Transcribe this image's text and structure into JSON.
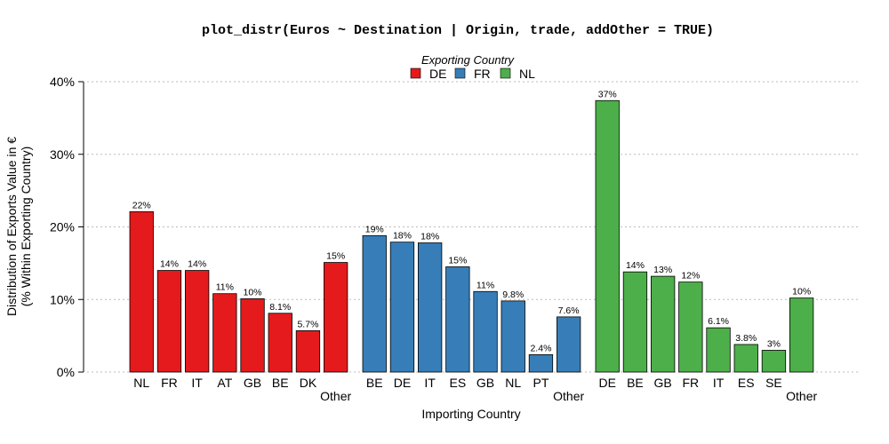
{
  "chart_data": {
    "type": "bar",
    "title": "plot_distr(Euros ~ Destination | Origin, trade, addOther = TRUE)",
    "xlabel": "Importing Country",
    "ylabel_line1": "Distribution of Exports Value in €",
    "ylabel_line2": "(% Within Exporting Country)",
    "ylim": [
      0,
      40
    ],
    "yticks": [
      0,
      10,
      20,
      30,
      40
    ],
    "ytick_labels": [
      "0%",
      "10%",
      "20%",
      "30%",
      "40%"
    ],
    "grid": true,
    "legend": {
      "title": "Exporting Country",
      "placement": "top-center",
      "entries": [
        {
          "label": "DE",
          "color": "#E41A1C"
        },
        {
          "label": "FR",
          "color": "#377EB8"
        },
        {
          "label": "NL",
          "color": "#4DAF4A"
        }
      ]
    },
    "series": [
      {
        "name": "DE",
        "color": "#E41A1C",
        "categories": [
          "NL",
          "FR",
          "IT",
          "AT",
          "GB",
          "BE",
          "DK",
          "Other"
        ],
        "values": [
          22.1,
          14.0,
          14.0,
          10.8,
          10.1,
          8.1,
          5.7,
          15.1
        ],
        "labels": [
          "22%",
          "14%",
          "14%",
          "11%",
          "10%",
          "8.1%",
          "5.7%",
          "15%"
        ]
      },
      {
        "name": "FR",
        "color": "#377EB8",
        "categories": [
          "BE",
          "DE",
          "IT",
          "ES",
          "GB",
          "NL",
          "PT",
          "Other"
        ],
        "values": [
          18.8,
          17.9,
          17.8,
          14.5,
          11.1,
          9.8,
          2.4,
          7.6
        ],
        "labels": [
          "19%",
          "18%",
          "18%",
          "15%",
          "11%",
          "9.8%",
          "2.4%",
          "7.6%"
        ]
      },
      {
        "name": "NL",
        "color": "#4DAF4A",
        "categories": [
          "DE",
          "BE",
          "GB",
          "FR",
          "IT",
          "ES",
          "SE",
          "Other"
        ],
        "values": [
          37.4,
          13.8,
          13.2,
          12.4,
          6.1,
          3.8,
          3.0,
          10.2
        ],
        "labels": [
          "37%",
          "14%",
          "13%",
          "12%",
          "6.1%",
          "3.8%",
          "3%",
          "10%"
        ]
      }
    ]
  }
}
